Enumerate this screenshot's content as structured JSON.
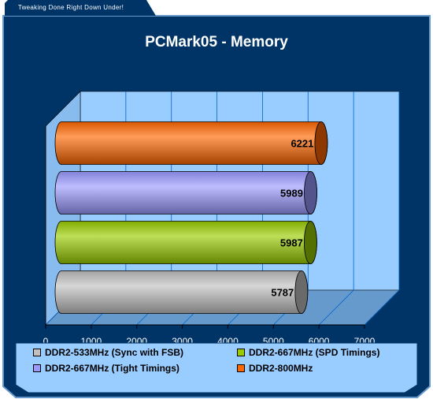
{
  "header": {
    "tagline": "Tweaking Done Right Down Under!"
  },
  "colors": {
    "frame": "#003366",
    "plot_back": "#99ccff",
    "floor": "#6699cc",
    "grid": "#0066cc",
    "legend_bg": "#99ccff",
    "title": "#ffffff"
  },
  "chart_data": {
    "type": "bar",
    "orientation": "horizontal",
    "style": "3d-cylinder",
    "title": "PCMark05 - Memory",
    "xlim": [
      0,
      7000
    ],
    "xticks": [
      "0",
      "1000",
      "2000",
      "3000",
      "4000",
      "5000",
      "6000",
      "7000"
    ],
    "grid": true,
    "legend_position": "bottom",
    "series": [
      {
        "name": "DDR2-533MHz (Sync with FSB)",
        "value": 5787,
        "label": "5787",
        "color": "#c0c0c0"
      },
      {
        "name": "DDR2-667MHz (SPD Timings)",
        "value": 5987,
        "label": "5987",
        "color": "#99cc00"
      },
      {
        "name": "DDR2-667MHz (Tight Timings)",
        "value": 5989,
        "label": "5989",
        "color": "#9999ff"
      },
      {
        "name": "DDR2-800MHz",
        "value": 6221,
        "label": "6221",
        "color": "#ff6600"
      }
    ]
  }
}
